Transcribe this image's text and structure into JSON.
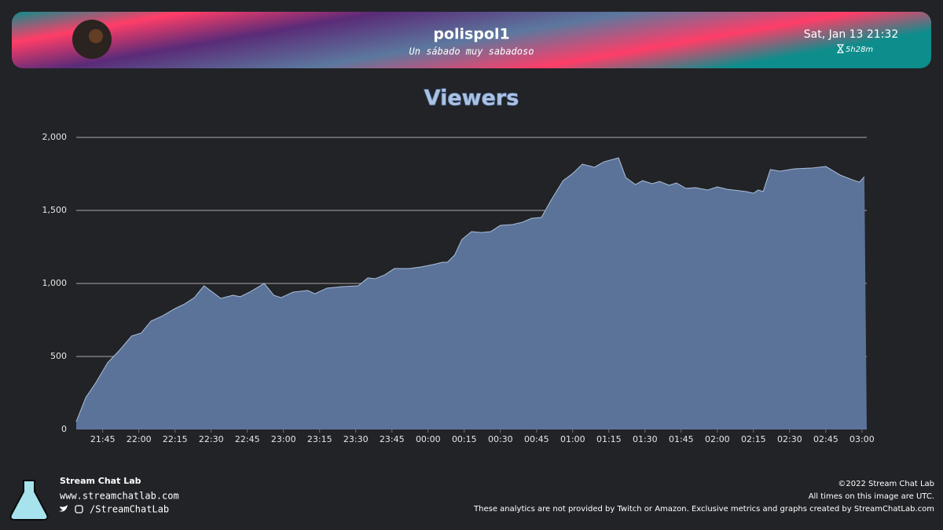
{
  "header": {
    "title": "polispol1",
    "subtitle": "Un sábado muy sabadoso",
    "date": "Sat, Jan 13 21:32",
    "duration": "5h28m"
  },
  "chart_data": {
    "type": "area",
    "title": "Viewers",
    "x": [
      "21:34",
      "21:38",
      "21:42",
      "21:47",
      "21:52",
      "21:57",
      "22:01",
      "22:05",
      "22:10",
      "22:15",
      "22:19",
      "22:23",
      "22:27",
      "22:34",
      "22:39",
      "22:42",
      "22:46",
      "22:52",
      "22:56",
      "22:59",
      "23:04",
      "23:10",
      "23:13",
      "23:18",
      "23:24",
      "23:31",
      "23:35",
      "23:38",
      "23:42",
      "23:46",
      "23:52",
      "23:57",
      "00:02",
      "00:06",
      "00:08",
      "00:11",
      "00:14",
      "00:18",
      "00:22",
      "00:26",
      "00:30",
      "00:35",
      "00:39",
      "00:43",
      "00:47",
      "00:51",
      "00:56",
      "01:00",
      "01:04",
      "01:09",
      "01:13",
      "01:19",
      "01:22",
      "01:26",
      "01:29",
      "01:33",
      "01:36",
      "01:40",
      "01:43",
      "01:47",
      "01:51",
      "01:56",
      "02:00",
      "02:04",
      "02:12",
      "02:15",
      "02:17",
      "02:19",
      "02:22",
      "02:26",
      "02:32",
      "02:39",
      "02:45",
      "02:51",
      "02:56",
      "02:59",
      "03:01"
    ],
    "values": [
      54,
      220,
      317,
      457,
      543,
      640,
      661,
      742,
      780,
      828,
      860,
      903,
      984,
      898,
      919,
      909,
      941,
      1000,
      919,
      903,
      941,
      952,
      930,
      968,
      978,
      984,
      1038,
      1032,
      1059,
      1102,
      1102,
      1113,
      1129,
      1145,
      1145,
      1194,
      1301,
      1355,
      1349,
      1355,
      1398,
      1403,
      1419,
      1446,
      1452,
      1570,
      1704,
      1753,
      1817,
      1796,
      1833,
      1860,
      1726,
      1677,
      1704,
      1683,
      1699,
      1672,
      1688,
      1651,
      1656,
      1640,
      1661,
      1645,
      1629,
      1618,
      1640,
      1629,
      1780,
      1769,
      1785,
      1790,
      1801,
      1742,
      1710,
      1694,
      1731
    ],
    "color": "#5b7399",
    "line_color": "#aebfd9",
    "xlim": [
      "21:34",
      "03:02"
    ],
    "xticks": [
      "21:45",
      "22:00",
      "22:15",
      "22:30",
      "22:45",
      "23:00",
      "23:15",
      "23:30",
      "23:45",
      "00:00",
      "00:15",
      "00:30",
      "00:45",
      "01:00",
      "01:15",
      "01:30",
      "01:45",
      "02:00",
      "02:15",
      "02:30",
      "02:45",
      "03:00"
    ],
    "ylim": [
      0,
      2000
    ],
    "yticks": [
      0,
      500,
      {
        "value": 1000,
        "label": "1,000"
      },
      {
        "value": 1500,
        "label": "1,500"
      },
      {
        "value": 2000,
        "label": "2,000"
      }
    ],
    "grid": true
  },
  "footer": {
    "brand": "Stream Chat Lab",
    "url": "www.streamchatlab.com",
    "handle": "/StreamChatLab",
    "copyright": "©2022 Stream Chat Lab",
    "timezone_note": "All times on this image are UTC.",
    "disclaimer": "These analytics are not provided by Twitch or Amazon. Exclusive metrics and graphs created by StreamChatLab.com"
  }
}
